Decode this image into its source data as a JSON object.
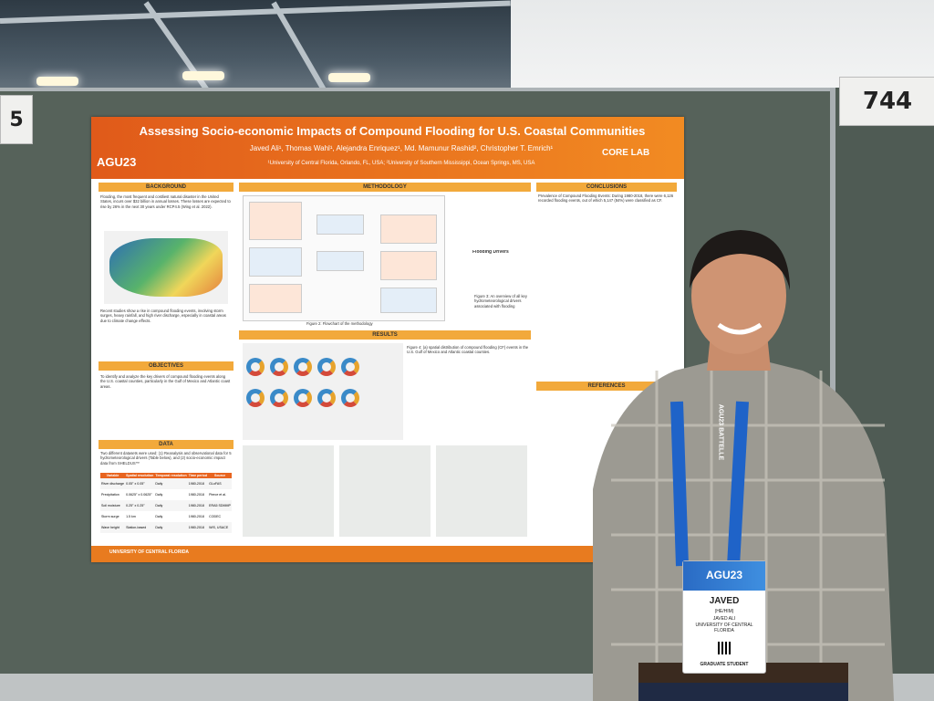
{
  "booth": {
    "number_right": "744",
    "number_left": "5"
  },
  "poster": {
    "title": "Assessing Socio-economic Impacts of Compound Flooding for U.S. Coastal Communities",
    "authors": "Javed Ali¹, Thomas Wahl¹, Alejandra Enriquez¹, Md. Mamunur Rashid², Christopher T. Emrich¹",
    "affiliations": "¹University of Central Florida, Orlando, FL, USA; ²University of Southern Mississippi, Ocean Springs, MS, USA",
    "conference_logo": "AGU23",
    "lab_logo": "CORE LAB",
    "sections": {
      "background": "BACKGROUND",
      "methodology": "METHODOLOGY",
      "conclusions": "CONCLUSIONS",
      "objectives": "OBJECTIVES",
      "results": "RESULTS",
      "data": "DATA",
      "references": "REFERENCES"
    },
    "background_text": "Flooding, the most frequent and costliest natural disaster in the United States, incurs over $32 billion in annual losses. These losses are expected to rise by 26% in the next 30 years under RCP4.5 (Wing et al. 2022).",
    "background_text_2": "Recent studies show a rise in compound flooding events, involving storm surges, heavy rainfall, and high river discharge, especially in coastal areas due to climate change effects.",
    "objectives_text": "To identify and analyze the key drivers of compound flooding events along the U.S. coastal counties, particularly in the Gulf of Mexico and Atlantic coast areas.",
    "data_text": "Two different datasets were used: (1) Reanalysis and observational data for 5 hydrometeorological drivers (Table below), and (2) socio-economic impact data from SHELDUS™",
    "data_table_headers": [
      "Variable",
      "Spatial resolution",
      "Temporal resolution",
      "Time period",
      "Source"
    ],
    "data_table_rows": [
      [
        "River discharge",
        "0.05° x 0.05°",
        "Daily",
        "1980-2018",
        "GLoFAS"
      ],
      [
        "Precipitation",
        "0.0625° x 0.0625°",
        "Daily",
        "1980-2018",
        "Pierce et al."
      ],
      [
        "Soil moisture",
        "0.25° x 0.25°",
        "Daily",
        "1980-2018",
        "ERA5 SDMMP"
      ],
      [
        "Storm surge",
        "1.5 km",
        "Daily",
        "1980-2018",
        "CODEC"
      ],
      [
        "Wave height",
        "Station-based",
        "Daily",
        "1980-2018",
        "WIS, USACE"
      ]
    ],
    "conclusions_text": "Prevalence of Compound Flooding Events: During 1980-2018, there were 6,126 recorded flooding events, out of which 5,147 (84%) were classified as CF.",
    "figure2_caption": "Figure 2: Flowchart of the methodology",
    "figure3_caption": "Figure 3: An overview of all key hydrometeorological drivers associated with flooding",
    "figure4_caption": "Figure 4: (a) spatial distribution of compound flooding (CF) events in the U.S. Gulf of Mexico and Atlantic coastal counties.",
    "flooding_drivers": "Flooding Drivers",
    "university_footer": "UNIVERSITY OF CENTRAL FLORIDA"
  },
  "badge": {
    "brand": "AGU23",
    "name": "JAVED",
    "pronouns": "(HE/HIM)",
    "full_name": "JAVED ALI",
    "institution": "UNIVERSITY OF CENTRAL FLORIDA",
    "role": "GRADUATE STUDENT"
  },
  "lanyard": {
    "text": "AGU23 BATTELLE"
  },
  "colors": {
    "poster_orange": "#e87b1f",
    "section_header": "#f2a93b",
    "board_green": "#56625a",
    "badge_blue": "#2a6bc4"
  }
}
